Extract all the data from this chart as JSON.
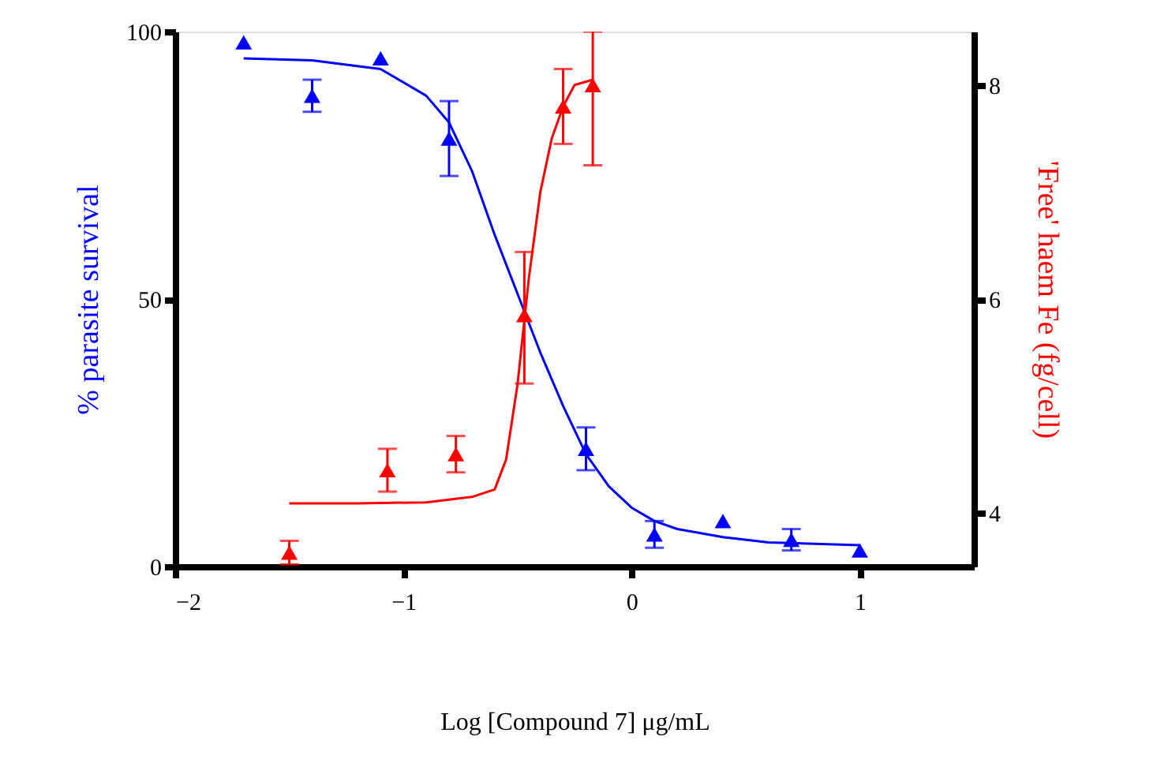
{
  "chart_data": {
    "type": "scatter",
    "xlabel": "Log [Compound 7] μg/mL",
    "ylabel": "% parasite survival",
    "y2label": "'Free' haem Fe (fg/cell)",
    "xlim": [
      -2,
      1.5
    ],
    "xticks": [
      -2,
      -1,
      0,
      1
    ],
    "ylim": [
      0,
      100
    ],
    "yticks": [
      0,
      50,
      100
    ],
    "y2lim": [
      3.5,
      8.5
    ],
    "y2ticks": [
      4,
      6,
      8
    ],
    "grid": false,
    "marker": "triangle",
    "series": [
      {
        "color": "#0000ff",
        "axis": "y",
        "x": [
          -1.7,
          -1.4,
          -1.1,
          -0.8,
          -0.2,
          0.1,
          0.4,
          0.7,
          1.0
        ],
        "values": [
          98,
          88,
          95,
          80,
          22,
          6,
          8.5,
          5,
          3
        ],
        "errors": [
          null,
          3,
          null,
          7,
          4,
          2.5,
          null,
          2,
          null
        ]
      },
      {
        "type": "line",
        "color": "#0000ff",
        "axis": "y",
        "marker": "none",
        "x": [
          -1.7,
          -1.4,
          -1.1,
          -0.9,
          -0.8,
          -0.7,
          -0.6,
          -0.5,
          -0.4,
          -0.3,
          -0.2,
          -0.1,
          0,
          0.1,
          0.2,
          0.4,
          0.6,
          1.0
        ],
        "values": [
          95,
          94.6,
          93,
          88,
          83,
          74,
          62,
          51,
          40,
          30,
          21,
          15,
          11,
          8.5,
          7,
          5.5,
          4.5,
          4
        ]
      },
      {
        "color": "#ff0000",
        "axis": "y2",
        "x": [
          -1.5,
          -1.07,
          -0.77,
          -0.47,
          -0.3,
          -0.17
        ],
        "values": [
          3.63,
          4.4,
          4.55,
          5.85,
          7.8,
          8.0
        ],
        "errors": [
          0.11,
          0.2,
          0.17,
          [
            5.21,
            6.44
          ],
          0.35,
          [
            7.25,
            8.5
          ]
        ]
      },
      {
        "type": "line",
        "color": "#ff0000",
        "axis": "y2",
        "marker": "none",
        "x": [
          -1.5,
          -1.2,
          -0.9,
          -0.7,
          -0.6,
          -0.55,
          -0.5,
          -0.45,
          -0.4,
          -0.35,
          -0.3,
          -0.25,
          -0.17
        ],
        "values": [
          4.09,
          4.09,
          4.1,
          4.15,
          4.22,
          4.5,
          5.2,
          6.2,
          7.0,
          7.5,
          7.8,
          8.0,
          8.05
        ]
      }
    ]
  }
}
